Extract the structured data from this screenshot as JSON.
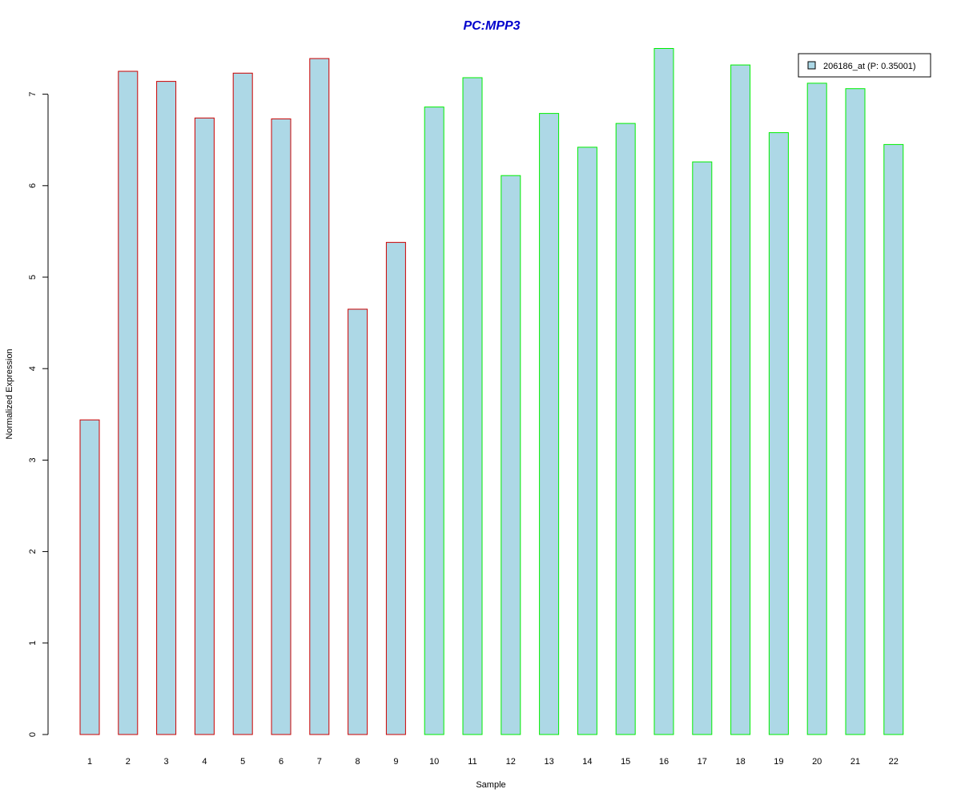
{
  "colors": {
    "title": "#0000cc",
    "bar_fill": "#add8e6",
    "group_a_border": "#cc0000",
    "group_b_border": "#00ee00",
    "axis": "#000000"
  },
  "chart_data": {
    "type": "bar",
    "title": "PC:MPP3",
    "xlabel": "Sample",
    "ylabel": "Normalized Expression",
    "ylim": [
      0,
      7
    ],
    "yticks": [
      0,
      1,
      2,
      3,
      4,
      5,
      6,
      7
    ],
    "grid": false,
    "legend_position": "top-right",
    "legend": [
      {
        "label": "206186_at (P: 0.35001)",
        "color": "#add8e6"
      }
    ],
    "categories": [
      "1",
      "2",
      "3",
      "4",
      "5",
      "6",
      "7",
      "8",
      "9",
      "10",
      "11",
      "12",
      "13",
      "14",
      "15",
      "16",
      "17",
      "18",
      "19",
      "20",
      "21",
      "22"
    ],
    "values": [
      3.44,
      7.25,
      7.14,
      6.74,
      7.23,
      6.73,
      7.39,
      4.65,
      5.38,
      6.86,
      7.18,
      6.11,
      6.79,
      6.42,
      6.68,
      7.5,
      6.26,
      7.32,
      6.58,
      7.12,
      7.06,
      6.45
    ],
    "groups": [
      "a",
      "a",
      "a",
      "a",
      "a",
      "a",
      "a",
      "a",
      "a",
      "b",
      "b",
      "b",
      "b",
      "b",
      "b",
      "b",
      "b",
      "b",
      "b",
      "b",
      "b",
      "b"
    ]
  }
}
